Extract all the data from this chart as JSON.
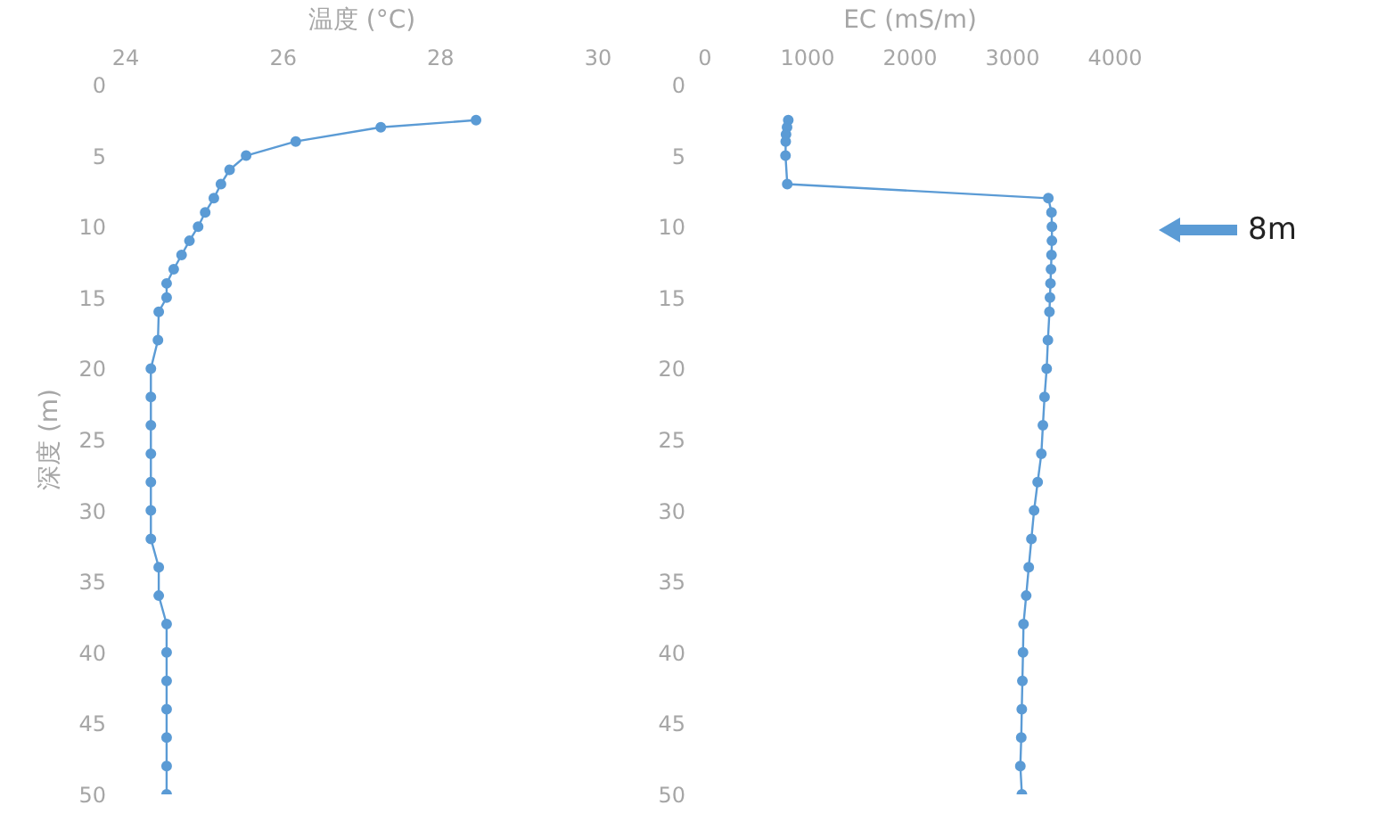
{
  "chart_data": [
    {
      "type": "line",
      "xlabel": "温度 (°C)",
      "ylabel": "深度 (m)",
      "xlim": [
        24,
        30
      ],
      "xticks": [
        24,
        26,
        28,
        30
      ],
      "ylim": [
        50,
        0
      ],
      "yticks": [
        0,
        5,
        10,
        15,
        20,
        25,
        30,
        35,
        40,
        45,
        50
      ],
      "marker": "circle",
      "grid": false,
      "series": [
        {
          "color": "#5b9bd5",
          "x": [
            28.45,
            27.24,
            26.16,
            25.53,
            25.32,
            25.21,
            25.12,
            25.01,
            24.92,
            24.81,
            24.71,
            24.61,
            24.52,
            24.52,
            24.42,
            24.41,
            24.32,
            24.32,
            24.32,
            24.32,
            24.32,
            24.32,
            24.32,
            24.42,
            24.42,
            24.52,
            24.52,
            24.52,
            24.52,
            24.52,
            24.52,
            24.52
          ],
          "values": [
            2.5,
            3,
            4,
            5,
            6,
            7,
            8,
            9,
            10,
            11,
            12,
            13,
            14,
            15,
            16,
            18,
            20,
            22,
            24,
            26,
            28,
            30,
            32,
            34,
            36,
            38,
            40,
            42,
            44,
            46,
            48,
            50
          ]
        }
      ]
    },
    {
      "type": "line",
      "xlabel": "EC (mS/m)",
      "xlim": [
        0,
        4000
      ],
      "xticks": [
        0,
        1000,
        2000,
        3000,
        4000
      ],
      "ylim": [
        50,
        0
      ],
      "yticks": [
        0,
        5,
        10,
        15,
        20,
        25,
        30,
        35,
        40,
        45,
        50
      ],
      "marker": "circle",
      "grid": false,
      "annotations": [
        "8m"
      ],
      "series": [
        {
          "color": "#5b9bd5",
          "x": [
            812,
            800,
            790,
            787,
            785,
            802,
            3349,
            3380,
            3384,
            3384,
            3380,
            3375,
            3370,
            3365,
            3360,
            3345,
            3333,
            3312,
            3296,
            3281,
            3245,
            3210,
            3184,
            3158,
            3133,
            3107,
            3102,
            3096,
            3090,
            3085,
            3076,
            3091
          ],
          "values": [
            2.5,
            3,
            3.5,
            4,
            5,
            7,
            8,
            9,
            10,
            11,
            12,
            13,
            14,
            15,
            16,
            18,
            20,
            22,
            24,
            26,
            28,
            30,
            32,
            34,
            36,
            38,
            40,
            42,
            44,
            46,
            48,
            50
          ]
        }
      ]
    }
  ]
}
